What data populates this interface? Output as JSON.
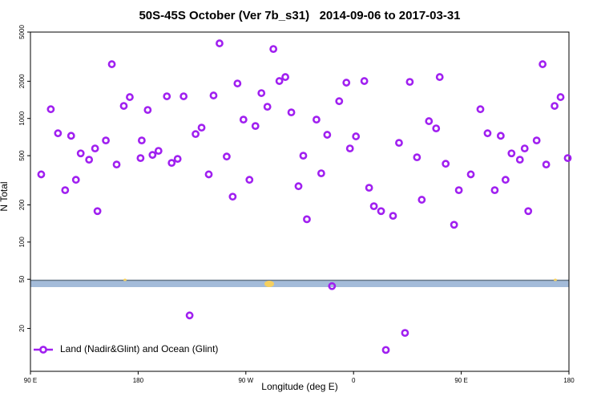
{
  "chart_data": {
    "type": "scatter",
    "title": "50S-45S October (Ver 7b_s31)   2014-09-06 to 2017-03-31",
    "x_label": "Longitude (deg E)",
    "y_label": "N Total",
    "log_y": true,
    "legend": "lower left",
    "xlim": [
      90,
      540
    ],
    "xticks": [
      {
        "value": 90,
        "label": "90 E"
      },
      180,
      {
        "value": 270,
        "label": "90 W"
      },
      {
        "value": 360,
        "label": "0"
      },
      {
        "value": 450,
        "label": "90 E"
      },
      {
        "value": 540,
        "label": "180"
      }
    ],
    "ylim": [
      9,
      5000
    ],
    "yticks": [
      5000,
      2000,
      1000,
      500,
      200,
      100,
      50,
      20
    ],
    "series": [
      {
        "name": "Land (Nadir&Glint) and Ocean (Glint)",
        "color": "#a020f0",
        "x": [
          99,
          107,
          113,
          119,
          124,
          128,
          132,
          139,
          144,
          146,
          153,
          158,
          162,
          168,
          173,
          182,
          183,
          188,
          192,
          197,
          204,
          208,
          213,
          218,
          223,
          228,
          233,
          239,
          243,
          248,
          254,
          259,
          263,
          268,
          273,
          278,
          283,
          288,
          293,
          298,
          303,
          308,
          314,
          318,
          321,
          329,
          333,
          338,
          342,
          348,
          354,
          357,
          362,
          369,
          373,
          377,
          383,
          387,
          393,
          398,
          403,
          407,
          413,
          417,
          423,
          429,
          432,
          437,
          444,
          448,
          458,
          466,
          472,
          478,
          483,
          487,
          492,
          499,
          503,
          506,
          513,
          518,
          521,
          528,
          533,
          539
        ],
        "values": [
          353,
          1188,
          759,
          263,
          724,
          319,
          522,
          464,
          572,
          178,
          664,
          2748,
          424,
          1263,
          1489,
          478,
          664,
          1172,
          507,
          547,
          1511,
          437,
          471,
          1511,
          25.5,
          748,
          843,
          353,
          1534,
          4052,
          492,
          233,
          1919,
          979,
          319,
          869,
          1604,
          1244,
          3648,
          2008,
          2163,
          1120,
          283,
          500,
          153,
          979,
          360,
          738,
          44,
          1380,
          1949,
          572,
          716,
          2008,
          275,
          195,
          178,
          13.4,
          163,
          635,
          18.4,
          1977,
          485,
          220,
          951,
          831,
          2163,
          430,
          138,
          263,
          353,
          1188,
          759,
          263,
          724,
          319,
          522,
          464,
          572,
          178,
          664,
          2748,
          424,
          1263,
          1489,
          478
        ]
      }
    ]
  }
}
